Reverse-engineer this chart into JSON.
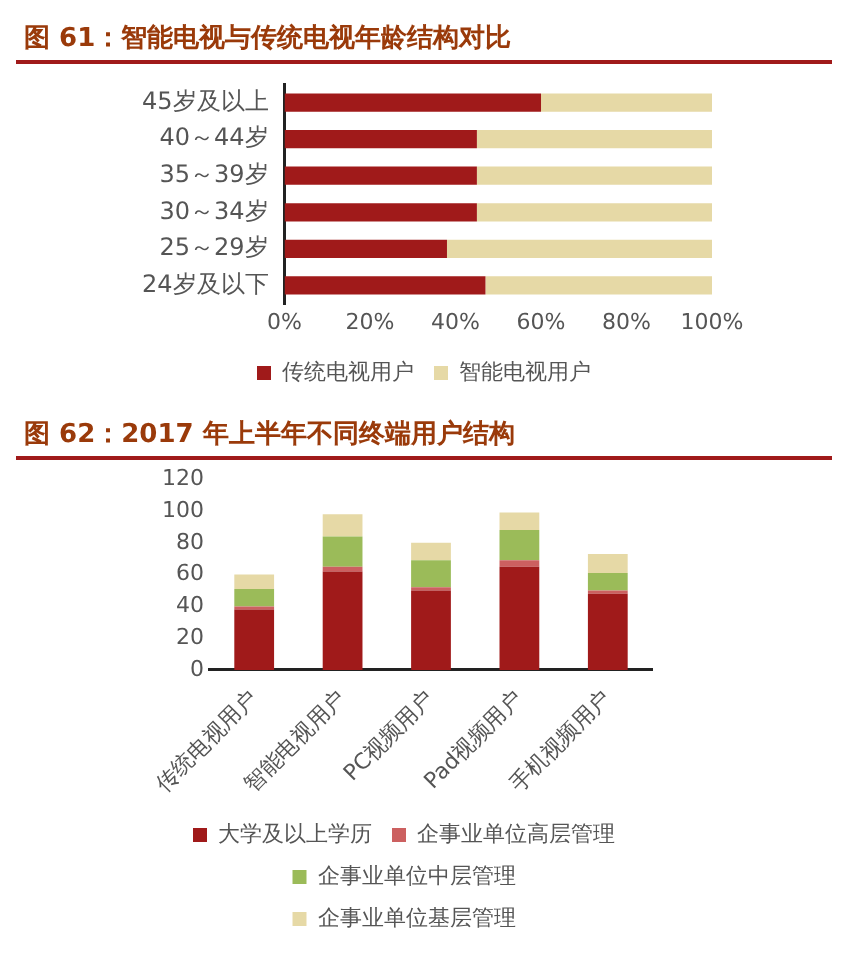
{
  "chart_data": [
    {
      "type": "bar",
      "title": "图 61：智能电视与传统电视年龄结构对比",
      "orientation": "horizontal",
      "stacked": true,
      "categories": [
        "45岁及以上",
        "40～44岁",
        "35～39岁",
        "30～34岁",
        "25～29岁",
        "24岁及以下"
      ],
      "series": [
        {
          "name": "传统电视用户",
          "color": "#a01a1a",
          "values": [
            60,
            45,
            45,
            45,
            38,
            47
          ]
        },
        {
          "name": "智能电视用户",
          "color": "#e6d9a6",
          "values": [
            40,
            55,
            55,
            55,
            62,
            53
          ]
        }
      ],
      "xlim": [
        0,
        100
      ],
      "xticks": [
        {
          "value": 0,
          "label": "0%"
        },
        {
          "value": 20,
          "label": "20%"
        },
        {
          "value": 40,
          "label": "40%"
        },
        {
          "value": 60,
          "label": "60%"
        },
        {
          "value": 80,
          "label": "80%"
        },
        {
          "value": 100,
          "label": "100%"
        }
      ],
      "grid": false,
      "legend": "bottom"
    },
    {
      "type": "bar",
      "title": "图 62：2017 年上半年不同终端用户结构",
      "stacked": true,
      "categories": [
        "传统电视用户",
        "智能电视用户",
        "PC视频用户",
        "Pad视频用户",
        "手机视频用户"
      ],
      "series": [
        {
          "name": "大学及以上学历",
          "color": "#a01a1a",
          "values": [
            38,
            62,
            50,
            65,
            48
          ]
        },
        {
          "name": "企事业单位高层管理",
          "color": "#cc6060",
          "values": [
            2,
            3,
            2,
            4,
            2
          ]
        },
        {
          "name": "企事业单位中层管理",
          "color": "#9bbb59",
          "values": [
            11,
            19,
            17,
            19,
            11
          ]
        },
        {
          "name": "企事业单位基层管理",
          "color": "#e6d9a6",
          "values": [
            9,
            14,
            11,
            11,
            12
          ]
        }
      ],
      "ylim": [
        0,
        120
      ],
      "yticks": [
        0,
        20,
        40,
        60,
        80,
        100,
        120
      ],
      "grid": false,
      "legend": "bottom"
    }
  ]
}
